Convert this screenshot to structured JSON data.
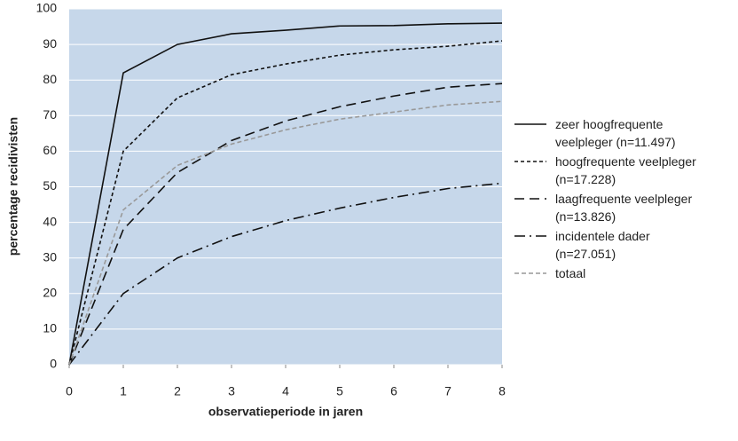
{
  "chart_data": {
    "type": "line",
    "y_label": "percentage recidivisten",
    "x_label": "observatieperiode in jaren",
    "x": [
      0,
      1,
      2,
      3,
      4,
      5,
      6,
      7,
      8
    ],
    "xlim": [
      0,
      8
    ],
    "xticks": [
      0,
      1,
      2,
      3,
      4,
      5,
      6,
      7,
      8
    ],
    "ylim": [
      0,
      100
    ],
    "yticks": [
      0,
      10,
      20,
      30,
      40,
      50,
      60,
      70,
      80,
      90,
      100
    ],
    "grid": true,
    "background": "#c6d7ea",
    "series": [
      {
        "name": "zeer hoogfrequente veelpleger (n=11.497)",
        "color": "#111111",
        "dash": "none",
        "values": [
          0,
          82,
          90,
          93,
          94,
          95.2,
          95.3,
          95.8,
          96
        ]
      },
      {
        "name": "hoogfrequente veelpleger (n=17.228)",
        "color": "#111111",
        "dash": "4,3",
        "values": [
          0,
          60,
          75,
          81.5,
          84.5,
          87,
          88.5,
          89.5,
          91
        ]
      },
      {
        "name": "laagfrequente veelpleger (n=13.826)",
        "color": "#111111",
        "dash": "11,6",
        "values": [
          0,
          38,
          54,
          63,
          68.5,
          72.5,
          75.5,
          78,
          79
        ]
      },
      {
        "name": "incidentele dader (n=27.051)",
        "color": "#111111",
        "dash": "12,5,2,5",
        "values": [
          0,
          20,
          30,
          36,
          40.5,
          44,
          47,
          49.5,
          51
        ]
      },
      {
        "name": "totaal",
        "color": "#999999",
        "dash": "5,3",
        "values": [
          0,
          43.5,
          56,
          62,
          66,
          69,
          71,
          73,
          74
        ]
      }
    ]
  }
}
